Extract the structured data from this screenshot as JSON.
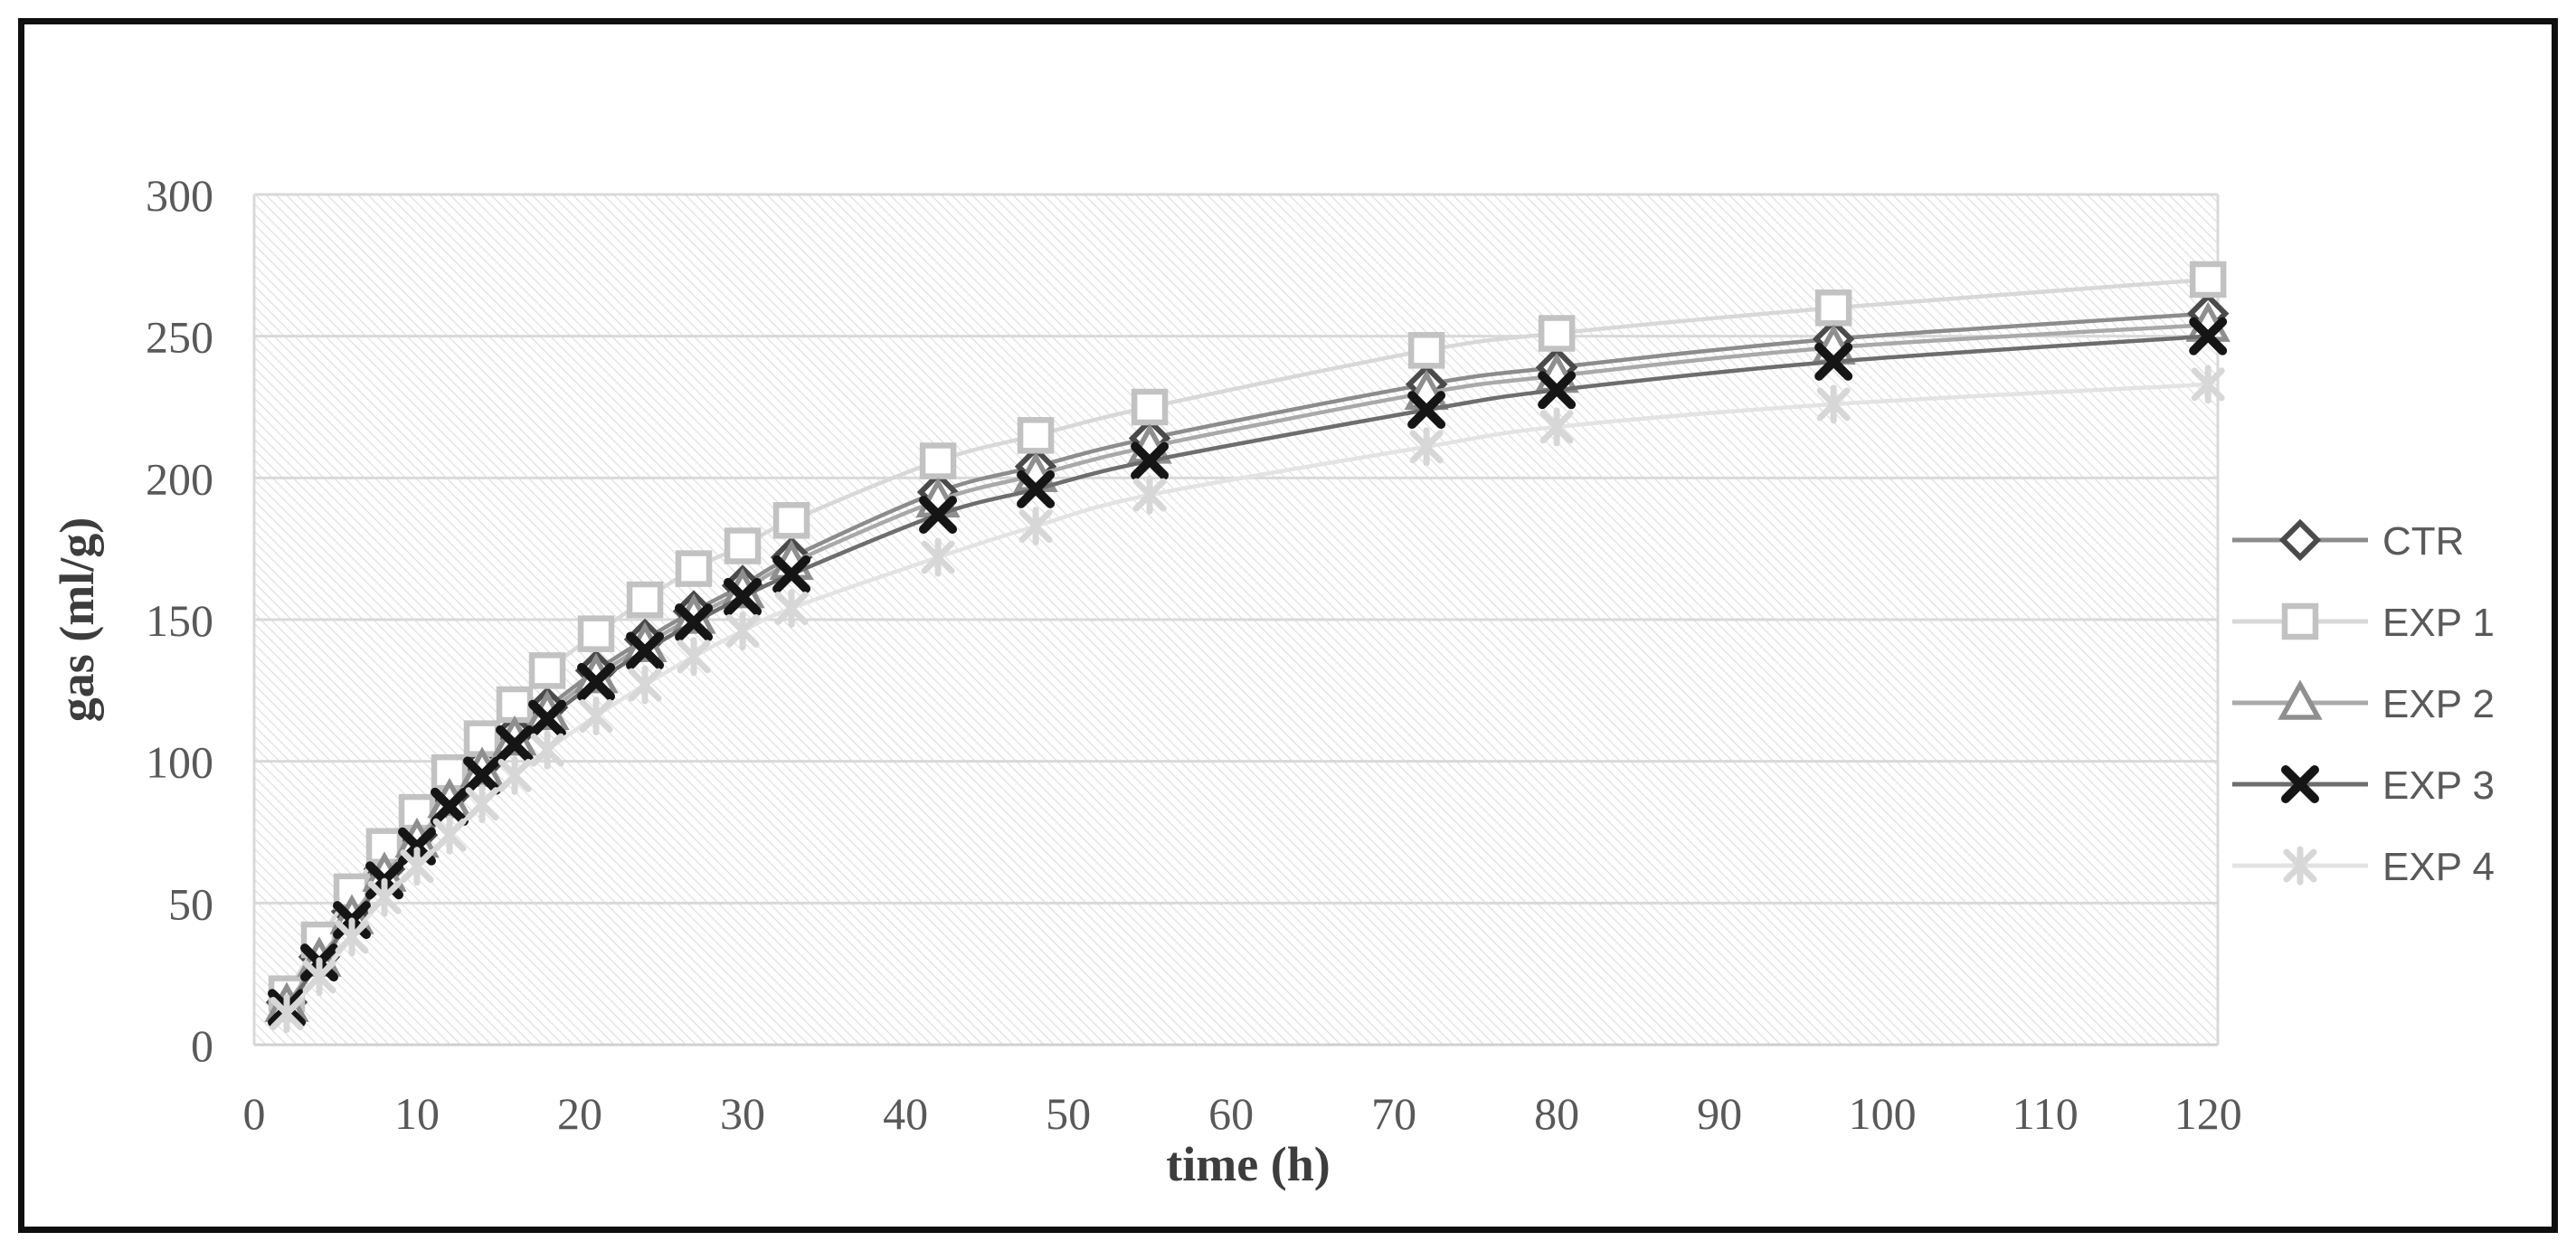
{
  "figure": {
    "frame_color": "#0f0f0f",
    "background": "#ffffff"
  },
  "styles": {
    "grid_color": "#d9d9d9",
    "axis_line_color": "#d0d0d0",
    "hatch_color": "#dcdcdc",
    "tick_text_color": "#595959",
    "axis_title_color": "#3d3d3d",
    "legend_text_color": "#595959"
  },
  "chart_data": {
    "type": "line",
    "title": "",
    "xlabel": "time (h)",
    "ylabel": "gas (ml/g)",
    "xlim": [
      0,
      120.6
    ],
    "ylim": [
      0,
      300
    ],
    "x_ticks": [
      0,
      10,
      20,
      30,
      40,
      50,
      60,
      70,
      80,
      90,
      100,
      110,
      120
    ],
    "y_ticks": [
      0,
      50,
      100,
      150,
      200,
      250,
      300
    ],
    "grid": "horizontal",
    "plot_background": "light diagonal hatch",
    "legend_position": "right",
    "x": [
      2,
      4,
      6,
      8,
      10,
      12,
      14,
      16,
      18,
      21,
      24,
      27,
      30,
      33,
      42,
      48,
      55,
      72,
      80,
      97,
      120
    ],
    "series": [
      {
        "name": "CTR",
        "marker": "diamond",
        "marker_color": "#4a4a4a",
        "line_color": "#8c8c8c",
        "values": [
          15,
          31,
          47,
          62,
          74,
          88,
          99,
          110,
          119,
          132,
          143,
          153,
          162,
          172,
          195,
          204,
          214,
          233,
          239,
          249,
          258
        ]
      },
      {
        "name": "EXP 1",
        "marker": "square",
        "marker_color": "#c2c2c2",
        "line_color": "#d8d8d8",
        "values": [
          18,
          37,
          54,
          70,
          82,
          96,
          108,
          120,
          132,
          145,
          157,
          168,
          176,
          185,
          206,
          215,
          225,
          245,
          251,
          260,
          270
        ]
      },
      {
        "name": "EXP 2",
        "marker": "triangle",
        "marker_color": "#8f8f8f",
        "line_color": "#a9a9a9",
        "values": [
          14,
          30,
          45,
          60,
          72,
          86,
          97,
          108,
          117,
          130,
          141,
          151,
          160,
          170,
          192,
          201,
          211,
          230,
          236,
          246,
          254
        ]
      },
      {
        "name": "EXP 3",
        "marker": "x",
        "marker_color": "#151515",
        "line_color": "#6d6d6d",
        "values": [
          13,
          29,
          44,
          58,
          70,
          84,
          95,
          106,
          115,
          128,
          139,
          149,
          158,
          166,
          187,
          196,
          206,
          224,
          231,
          241,
          250
        ]
      },
      {
        "name": "EXP 4",
        "marker": "star",
        "marker_color": "#d7d7d7",
        "line_color": "#e3e3e3",
        "values": [
          11,
          24,
          38,
          52,
          63,
          74,
          85,
          95,
          104,
          116,
          127,
          137,
          146,
          154,
          172,
          183,
          194,
          211,
          218,
          226,
          233
        ]
      }
    ]
  }
}
